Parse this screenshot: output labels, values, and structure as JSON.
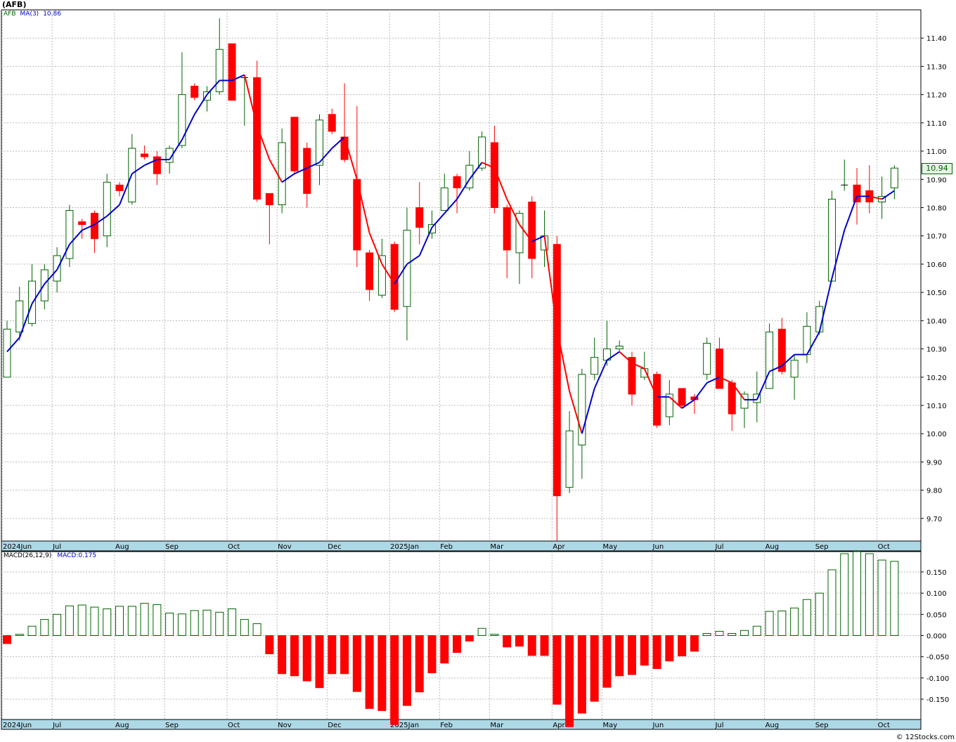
{
  "header": {
    "symbol": "(AFB)",
    "series_label": "AFB",
    "ma_label": "MA(3)",
    "ma_value": "10.86",
    "last_price": "10.94",
    "macd_label": "MACD(26,12,9)",
    "macd_value": "MACD:0.175",
    "credit": "© 12Stocks.com"
  },
  "colors": {
    "up": "#006400",
    "down": "#ff0000",
    "ma_up": "#0000cc",
    "ma_down": "#ff0000",
    "axis_band": "#add8e6",
    "grid": "#bbbbbb"
  },
  "chart_data": [
    {
      "type": "candlestick",
      "title": "(AFB)",
      "ylim": [
        9.62,
        11.5
      ],
      "y_ticks": [
        "9.70",
        "9.80",
        "9.90",
        "10.00",
        "10.10",
        "10.20",
        "10.30",
        "10.40",
        "10.50",
        "10.60",
        "10.70",
        "10.80",
        "10.90",
        "11.00",
        "11.10",
        "11.20",
        "11.30",
        "11.40"
      ],
      "x_labels": [
        {
          "label": "2024Jun",
          "week": 0
        },
        {
          "label": "Jul",
          "week": 4
        },
        {
          "label": "Aug",
          "week": 9
        },
        {
          "label": "Sep",
          "week": 13
        },
        {
          "label": "Oct",
          "week": 18
        },
        {
          "label": "Nov",
          "week": 22
        },
        {
          "label": "Dec",
          "week": 26
        },
        {
          "label": "2025Jan",
          "week": 31
        },
        {
          "label": "Feb",
          "week": 35
        },
        {
          "label": "Mar",
          "week": 39
        },
        {
          "label": "Apr",
          "week": 44
        },
        {
          "label": "May",
          "week": 48
        },
        {
          "label": "Jun",
          "week": 52
        },
        {
          "label": "Jul",
          "week": 57
        },
        {
          "label": "Aug",
          "week": 61
        },
        {
          "label": "Sep",
          "week": 65
        },
        {
          "label": "Oct",
          "week": 70
        }
      ],
      "grid": true,
      "candles": [
        [
          10.2,
          10.4,
          10.2,
          10.37
        ],
        [
          10.36,
          10.52,
          10.33,
          10.47
        ],
        [
          10.39,
          10.6,
          10.38,
          10.54
        ],
        [
          10.47,
          10.6,
          10.44,
          10.58
        ],
        [
          10.54,
          10.66,
          10.5,
          10.63
        ],
        [
          10.62,
          10.81,
          10.59,
          10.79
        ],
        [
          10.75,
          10.76,
          10.69,
          10.74
        ],
        [
          10.78,
          10.79,
          10.64,
          10.69
        ],
        [
          10.7,
          10.92,
          10.66,
          10.89
        ],
        [
          10.88,
          10.89,
          10.84,
          10.86
        ],
        [
          10.82,
          11.06,
          10.81,
          11.01
        ],
        [
          10.99,
          11.02,
          10.97,
          10.98
        ],
        [
          10.98,
          11.0,
          10.88,
          10.92
        ],
        [
          10.96,
          11.02,
          10.92,
          11.01
        ],
        [
          11.02,
          11.35,
          11.01,
          11.2
        ],
        [
          11.23,
          11.24,
          11.18,
          11.19
        ],
        [
          11.18,
          11.23,
          11.14,
          11.21
        ],
        [
          11.21,
          11.47,
          11.2,
          11.36
        ],
        [
          11.38,
          11.38,
          11.18,
          11.18
        ],
        [
          11.26,
          11.27,
          11.09,
          11.26
        ],
        [
          11.26,
          11.32,
          10.82,
          10.83
        ],
        [
          10.85,
          10.85,
          10.67,
          10.81
        ],
        [
          10.81,
          11.08,
          10.78,
          11.03
        ],
        [
          11.12,
          11.12,
          10.92,
          10.93
        ],
        [
          11.01,
          11.03,
          10.8,
          10.85
        ],
        [
          10.95,
          11.13,
          10.88,
          11.11
        ],
        [
          11.13,
          11.15,
          11.06,
          11.07
        ],
        [
          11.05,
          11.24,
          10.96,
          10.97
        ],
        [
          10.9,
          11.16,
          10.59,
          10.65
        ],
        [
          10.64,
          10.65,
          10.47,
          10.51
        ],
        [
          10.49,
          10.69,
          10.48,
          10.63
        ],
        [
          10.67,
          10.68,
          10.43,
          10.44
        ],
        [
          10.45,
          10.8,
          10.33,
          10.72
        ],
        [
          10.8,
          10.89,
          10.67,
          10.73
        ],
        [
          10.71,
          10.79,
          10.69,
          10.74
        ],
        [
          10.79,
          10.92,
          10.79,
          10.87
        ],
        [
          10.91,
          10.92,
          10.78,
          10.87
        ],
        [
          10.87,
          11.0,
          10.86,
          10.95
        ],
        [
          10.94,
          11.07,
          10.93,
          11.05
        ],
        [
          11.03,
          11.09,
          10.78,
          10.8
        ],
        [
          10.8,
          10.81,
          10.55,
          10.65
        ],
        [
          10.64,
          10.79,
          10.53,
          10.78
        ],
        [
          10.82,
          10.84,
          10.55,
          10.62
        ],
        [
          10.65,
          10.79,
          10.59,
          10.7
        ],
        [
          10.67,
          10.7,
          9.62,
          9.78
        ],
        [
          9.81,
          10.08,
          9.79,
          10.01
        ],
        [
          9.96,
          10.23,
          9.84,
          10.21
        ],
        [
          10.21,
          10.34,
          10.19,
          10.27
        ],
        [
          10.26,
          10.4,
          10.24,
          10.3
        ],
        [
          10.3,
          10.33,
          10.29,
          10.31
        ],
        [
          10.27,
          10.29,
          10.1,
          10.14
        ],
        [
          10.2,
          10.29,
          10.19,
          10.23
        ],
        [
          10.21,
          10.22,
          10.02,
          10.03
        ],
        [
          10.06,
          10.19,
          10.03,
          10.14
        ],
        [
          10.16,
          10.16,
          10.09,
          10.1
        ],
        [
          10.13,
          10.14,
          10.07,
          10.12
        ],
        [
          10.21,
          10.34,
          10.19,
          10.32
        ],
        [
          10.3,
          10.34,
          10.16,
          10.16
        ],
        [
          10.18,
          10.19,
          10.01,
          10.07
        ],
        [
          10.09,
          10.15,
          10.02,
          10.14
        ],
        [
          10.11,
          10.22,
          10.04,
          10.14
        ],
        [
          10.16,
          10.39,
          10.16,
          10.36
        ],
        [
          10.37,
          10.41,
          10.21,
          10.22
        ],
        [
          10.2,
          10.28,
          10.12,
          10.26
        ],
        [
          10.28,
          10.43,
          10.25,
          10.38
        ],
        [
          10.36,
          10.47,
          10.35,
          10.45
        ],
        [
          10.54,
          10.86,
          10.54,
          10.83
        ],
        [
          10.88,
          10.97,
          10.86,
          10.88
        ],
        [
          10.88,
          10.94,
          10.74,
          10.82
        ],
        [
          10.86,
          10.95,
          10.78,
          10.82
        ],
        [
          10.82,
          10.91,
          10.76,
          10.84
        ],
        [
          10.87,
          10.95,
          10.83,
          10.94
        ]
      ],
      "ma": [
        10.29,
        10.34,
        10.46,
        10.53,
        10.58,
        10.67,
        10.72,
        10.74,
        10.77,
        10.81,
        10.92,
        10.95,
        10.97,
        10.97,
        11.04,
        11.13,
        11.2,
        11.25,
        11.25,
        11.27,
        11.09,
        10.97,
        10.89,
        10.92,
        10.94,
        10.96,
        11.01,
        11.05,
        10.9,
        10.71,
        10.6,
        10.53,
        10.6,
        10.63,
        10.73,
        10.78,
        10.83,
        10.9,
        10.96,
        10.94,
        10.83,
        10.74,
        10.68,
        10.7,
        10.37,
        10.15,
        10.0,
        10.16,
        10.26,
        10.29,
        10.25,
        10.23,
        10.13,
        10.13,
        10.09,
        10.12,
        10.18,
        10.2,
        10.18,
        10.12,
        10.12,
        10.22,
        10.24,
        10.28,
        10.28,
        10.36,
        10.55,
        10.72,
        10.84,
        10.84,
        10.83,
        10.86
      ],
      "ma_bands": [
        {
          "label": "9.70",
          "y": 9.7
        },
        {
          "label": "10.00",
          "y": 10.0
        }
      ]
    },
    {
      "type": "bar",
      "title": "MACD(26,12,9)",
      "ylim": [
        -0.198,
        0.198
      ],
      "y_ticks": [
        "-0.150",
        "-0.100",
        "-0.050",
        "0.000",
        "0.050",
        "0.100",
        "0.150"
      ],
      "values": [
        -0.019,
        0.003,
        0.022,
        0.038,
        0.05,
        0.07,
        0.072,
        0.067,
        0.063,
        0.069,
        0.069,
        0.076,
        0.073,
        0.053,
        0.051,
        0.059,
        0.06,
        0.055,
        0.063,
        0.038,
        0.028,
        -0.043,
        -0.09,
        -0.095,
        -0.107,
        -0.123,
        -0.09,
        -0.09,
        -0.132,
        -0.172,
        -0.177,
        -0.21,
        -0.165,
        -0.133,
        -0.088,
        -0.065,
        -0.04,
        -0.013,
        0.017,
        0.003,
        -0.027,
        -0.025,
        -0.047,
        -0.047,
        -0.162,
        -0.215,
        -0.183,
        -0.155,
        -0.122,
        -0.095,
        -0.092,
        -0.07,
        -0.078,
        -0.06,
        -0.048,
        -0.037,
        0.005,
        0.01,
        0.005,
        0.012,
        0.022,
        0.057,
        0.058,
        0.065,
        0.085,
        0.1,
        0.155,
        0.193,
        0.198,
        0.193,
        0.178,
        0.175
      ]
    }
  ]
}
